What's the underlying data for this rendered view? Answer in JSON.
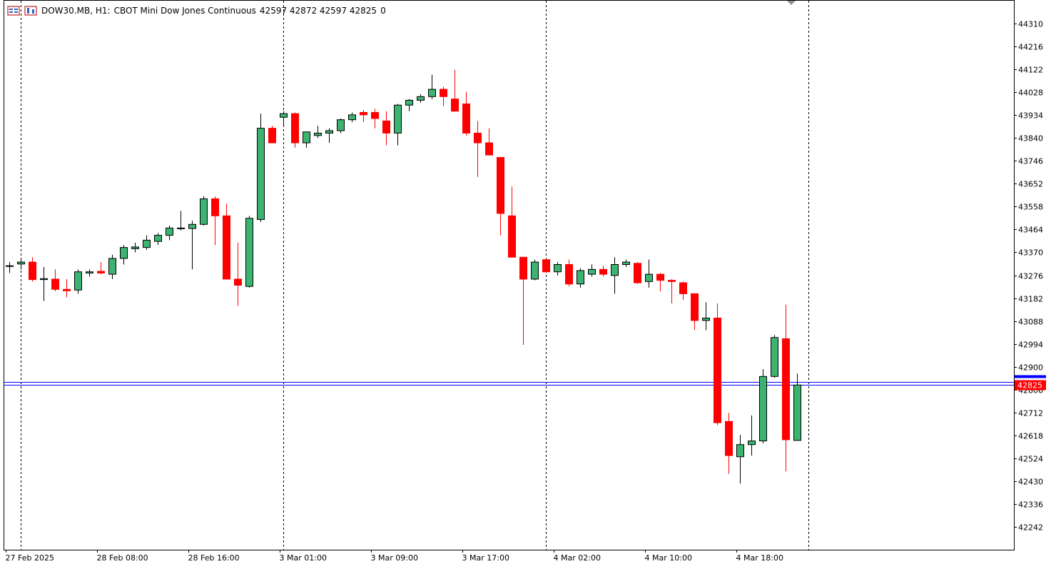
{
  "header": {
    "symbol": "DOW30.MB, H1:",
    "description": "CBOT Mini Dow Jones Continuous",
    "ohlc": "42597 42872 42597 42825",
    "volume": "0",
    "icons": [
      "chart-window-icon",
      "one-click-trading-icon"
    ]
  },
  "colors": {
    "bull": "#3cb371",
    "bear": "#ff0000",
    "outline": "#000000",
    "bid_line": "#0000ff",
    "ask_line": "#ff0000",
    "price_tag_bg": "#ff0000",
    "price_tag_text": "#ffffff"
  },
  "chart_data": {
    "type": "candlestick",
    "y_range": [
      42148,
      44404
    ],
    "y_ticks": [
      44310,
      44216,
      44122,
      44028,
      43934,
      43840,
      43746,
      43652,
      43558,
      43464,
      43370,
      43276,
      43182,
      43088,
      42994,
      42900,
      42806,
      42712,
      42618,
      42524,
      42430,
      42336,
      42242
    ],
    "x_labels": [
      {
        "label": "27 Feb 2025",
        "index": 0
      },
      {
        "label": "28 Feb 08:00",
        "index": 8
      },
      {
        "label": "28 Feb 16:00",
        "index": 16
      },
      {
        "label": "3 Mar 01:00",
        "index": 24
      },
      {
        "label": "3 Mar 09:00",
        "index": 32
      },
      {
        "label": "3 Mar 17:00",
        "index": 40
      },
      {
        "label": "4 Mar 02:00",
        "index": 48
      },
      {
        "label": "4 Mar 10:00",
        "index": 56
      },
      {
        "label": "4 Mar 18:00",
        "index": 64
      }
    ],
    "day_separators": [
      1,
      24,
      47,
      70
    ],
    "current_price": 42825,
    "current_price_label": "42825",
    "ask_price": 42837,
    "candles": [
      [
        43312,
        43330,
        43285,
        43315
      ],
      [
        43322,
        43340,
        43300,
        43330
      ],
      [
        43330,
        43350,
        43250,
        43258
      ],
      [
        43258,
        43310,
        43170,
        43262
      ],
      [
        43260,
        43300,
        43210,
        43218
      ],
      [
        43218,
        43260,
        43185,
        43212
      ],
      [
        43215,
        43300,
        43200,
        43290
      ],
      [
        43285,
        43300,
        43270,
        43290
      ],
      [
        43292,
        43330,
        43280,
        43285
      ],
      [
        43280,
        43360,
        43260,
        43345
      ],
      [
        43345,
        43400,
        43320,
        43390
      ],
      [
        43385,
        43410,
        43370,
        43392
      ],
      [
        43390,
        43440,
        43380,
        43420
      ],
      [
        43415,
        43450,
        43400,
        43440
      ],
      [
        43440,
        43480,
        43420,
        43470
      ],
      [
        43468,
        43540,
        43460,
        43470
      ],
      [
        43468,
        43500,
        43300,
        43485
      ],
      [
        43485,
        43600,
        43480,
        43590
      ],
      [
        43590,
        43600,
        43400,
        43520
      ],
      [
        43520,
        43570,
        43260,
        43260
      ],
      [
        43260,
        43410,
        43150,
        43235
      ],
      [
        43230,
        43520,
        43225,
        43510
      ],
      [
        43505,
        43940,
        43495,
        43880
      ],
      [
        43880,
        43890,
        43820,
        43820
      ],
      [
        43925,
        43950,
        43890,
        43940
      ],
      [
        43940,
        43945,
        43800,
        43820
      ],
      [
        43820,
        43865,
        43800,
        43865
      ],
      [
        43850,
        43890,
        43840,
        43860
      ],
      [
        43860,
        43880,
        43820,
        43870
      ],
      [
        43870,
        43920,
        43860,
        43915
      ],
      [
        43915,
        43945,
        43905,
        43935
      ],
      [
        43945,
        43955,
        43905,
        43935
      ],
      [
        43945,
        43960,
        43880,
        43920
      ],
      [
        43910,
        43950,
        43810,
        43860
      ],
      [
        43860,
        43980,
        43810,
        43975
      ],
      [
        43975,
        44000,
        43950,
        43995
      ],
      [
        43995,
        44020,
        43985,
        44010
      ],
      [
        44010,
        44100,
        44000,
        44040
      ],
      [
        44040,
        44050,
        43970,
        44010
      ],
      [
        44000,
        44120,
        43950,
        43950
      ],
      [
        43980,
        44030,
        43850,
        43860
      ],
      [
        43860,
        43910,
        43680,
        43820
      ],
      [
        43820,
        43880,
        43770,
        43770
      ],
      [
        43760,
        43760,
        43440,
        43530
      ],
      [
        43520,
        43640,
        43350,
        43350
      ],
      [
        43350,
        43350,
        42990,
        43260
      ],
      [
        43260,
        43340,
        43255,
        43330
      ],
      [
        43340,
        43345,
        43285,
        43290
      ],
      [
        43290,
        43330,
        43275,
        43320
      ],
      [
        43320,
        43340,
        43230,
        43240
      ],
      [
        43240,
        43305,
        43225,
        43295
      ],
      [
        43280,
        43320,
        43270,
        43300
      ],
      [
        43300,
        43315,
        43270,
        43280
      ],
      [
        43275,
        43350,
        43200,
        43320
      ],
      [
        43320,
        43340,
        43310,
        43330
      ],
      [
        43325,
        43330,
        43240,
        43245
      ],
      [
        43250,
        43340,
        43225,
        43280
      ],
      [
        43280,
        43285,
        43210,
        43255
      ],
      [
        43255,
        43260,
        43160,
        43250
      ],
      [
        43245,
        43250,
        43175,
        43200
      ],
      [
        43200,
        43200,
        43050,
        43090
      ],
      [
        43090,
        43165,
        43050,
        43100
      ],
      [
        43100,
        43160,
        42660,
        42670
      ],
      [
        42675,
        42710,
        42460,
        42535
      ],
      [
        42530,
        42620,
        42420,
        42580
      ],
      [
        42580,
        42700,
        42535,
        42595
      ],
      [
        42595,
        42890,
        42585,
        42860
      ],
      [
        42860,
        43030,
        42855,
        43020
      ],
      [
        43015,
        43155,
        42470,
        42600
      ],
      [
        42597,
        42872,
        42597,
        42825
      ]
    ]
  }
}
